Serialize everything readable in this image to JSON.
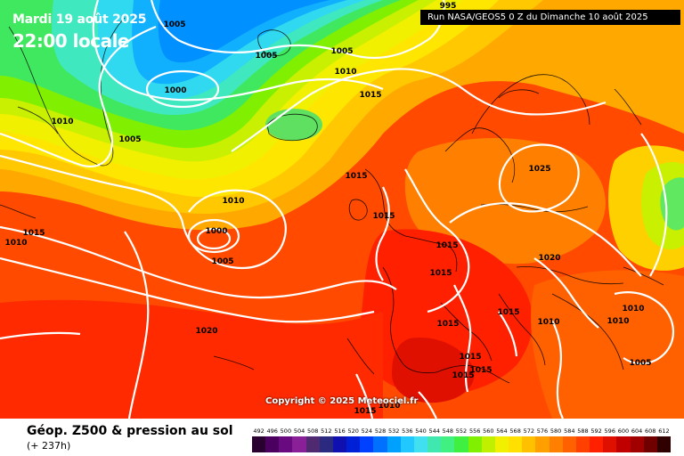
{
  "header": {
    "date_label": "Mardi 19 août 2025",
    "time_label": "22:00 locale",
    "run_label": "Run NASA/GEOS5 0 Z du Dimanche 10 août 2025"
  },
  "copyright": "Copyright © 2025 Meteociel.fr",
  "footer": {
    "title": "Géop. Z500 & pression au sol",
    "subtitle": "(+ 237h)"
  },
  "isobar_labels": [
    {
      "text": "995"
    },
    {
      "text": "1005"
    },
    {
      "text": "1005"
    },
    {
      "text": "1005"
    },
    {
      "text": "1010"
    },
    {
      "text": "1000"
    },
    {
      "text": "1015"
    },
    {
      "text": "1010"
    },
    {
      "text": "1005"
    },
    {
      "text": "1015"
    },
    {
      "text": "1015"
    },
    {
      "text": "1025"
    },
    {
      "text": "1010"
    },
    {
      "text": "1000"
    },
    {
      "text": "1005"
    },
    {
      "text": "1010"
    },
    {
      "text": "1015"
    },
    {
      "text": "1015"
    },
    {
      "text": "1020"
    },
    {
      "text": "1015"
    },
    {
      "text": "1015"
    },
    {
      "text": "1015"
    },
    {
      "text": "1010"
    },
    {
      "text": "1010"
    },
    {
      "text": "1010"
    },
    {
      "text": "1020"
    },
    {
      "text": "1015"
    },
    {
      "text": "1015"
    },
    {
      "text": "1015"
    },
    {
      "text": "1005"
    },
    {
      "text": "1015"
    },
    {
      "text": "1010"
    }
  ],
  "color_scale": {
    "labels": [
      "492",
      "496",
      "500",
      "504",
      "508",
      "512",
      "516",
      "520",
      "524",
      "528",
      "532",
      "536",
      "540",
      "544",
      "548",
      "552",
      "556",
      "560",
      "564",
      "568",
      "572",
      "576",
      "580",
      "584",
      "588",
      "592",
      "596",
      "600",
      "604",
      "608",
      "612"
    ],
    "colors": [
      "#2a0030",
      "#4b0060",
      "#6a0a80",
      "#8a2098",
      "#502a70",
      "#2a2a80",
      "#1010b0",
      "#0020d8",
      "#0040ff",
      "#0070ff",
      "#00a0ff",
      "#20c8ff",
      "#40e0f0",
      "#40e8b0",
      "#40f080",
      "#40f040",
      "#80f000",
      "#c0f000",
      "#f0f000",
      "#ffe000",
      "#ffc000",
      "#ffa000",
      "#ff8000",
      "#ff6000",
      "#ff4000",
      "#ff2000",
      "#e01000",
      "#c00000",
      "#a00000",
      "#700000",
      "#300000"
    ]
  }
}
